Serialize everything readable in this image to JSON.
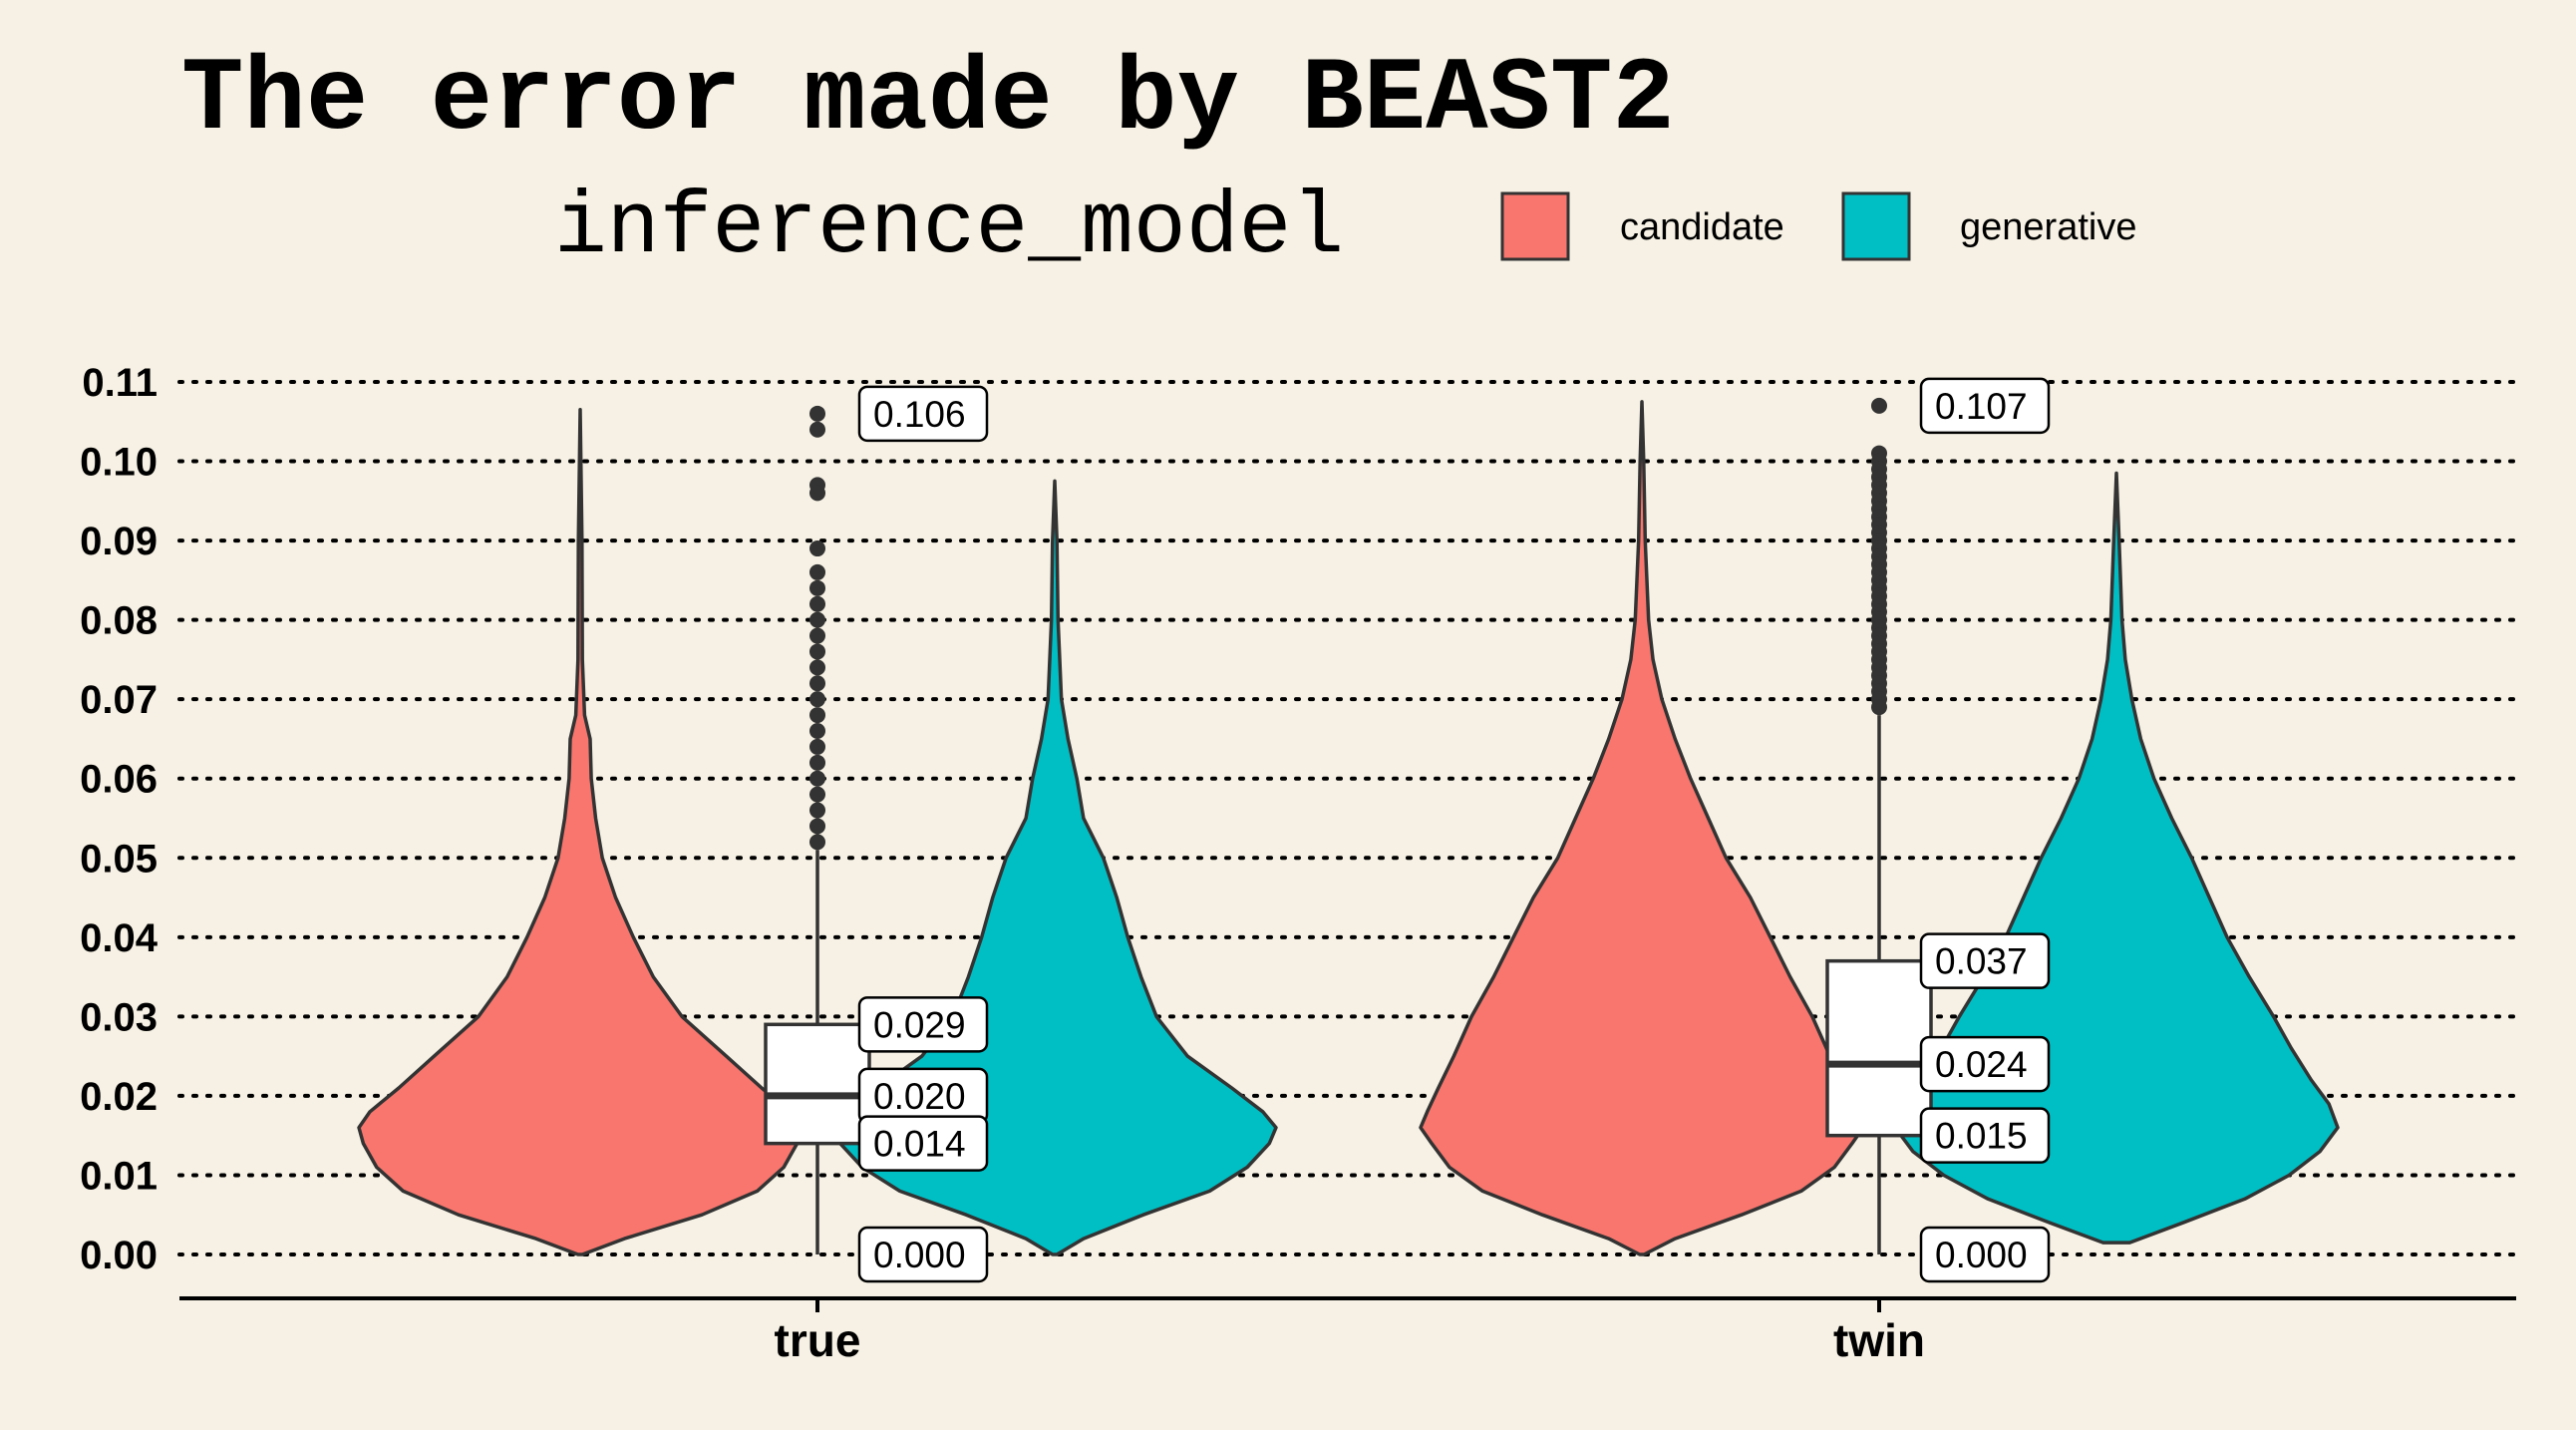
{
  "chart_data": {
    "type": "violin",
    "title": "The error made by BEAST2",
    "legend": {
      "title": "inference_model",
      "entries": [
        {
          "label": "candidate",
          "color": "#f8766d"
        },
        {
          "label": "generative",
          "color": "#00bfc4"
        }
      ]
    },
    "categories": [
      "true",
      "twin"
    ],
    "ylim": [
      0,
      0.11
    ],
    "yticks": [
      "0.00",
      "0.01",
      "0.02",
      "0.03",
      "0.04",
      "0.05",
      "0.06",
      "0.07",
      "0.08",
      "0.09",
      "0.10",
      "0.11"
    ],
    "grid": "horizontal-dotted",
    "groups": [
      {
        "category": "true",
        "box": {
          "min": 0.0,
          "q1": 0.014,
          "median": 0.02,
          "q3": 0.029,
          "whisker_high": 0.051,
          "max": 0.106
        },
        "labels": [
          "0.106",
          "0.029",
          "0.020",
          "0.014",
          "0.000"
        ],
        "outliers": [
          0.106,
          0.104,
          0.097,
          0.096,
          0.089,
          0.086,
          0.084,
          0.082,
          0.08,
          0.078,
          0.076,
          0.074,
          0.072,
          0.07,
          0.068,
          0.066,
          0.064,
          0.062,
          0.06,
          0.058,
          0.056,
          0.054,
          0.052
        ],
        "violins": [
          {
            "model": "candidate",
            "min": 0.0,
            "max": 0.1065,
            "profile": [
              [
                0.0,
                0.01
              ],
              [
                0.002,
                0.2
              ],
              [
                0.005,
                0.55
              ],
              [
                0.008,
                0.8
              ],
              [
                0.011,
                0.92
              ],
              [
                0.014,
                0.98
              ],
              [
                0.016,
                1.0
              ],
              [
                0.018,
                0.95
              ],
              [
                0.021,
                0.82
              ],
              [
                0.025,
                0.66
              ],
              [
                0.03,
                0.46
              ],
              [
                0.035,
                0.33
              ],
              [
                0.04,
                0.24
              ],
              [
                0.045,
                0.16
              ],
              [
                0.05,
                0.1
              ],
              [
                0.055,
                0.07
              ],
              [
                0.06,
                0.05
              ],
              [
                0.065,
                0.045
              ],
              [
                0.068,
                0.02
              ],
              [
                0.075,
                0.01
              ],
              [
                0.09,
                0.008
              ],
              [
                0.1065,
                0.0
              ]
            ]
          },
          {
            "model": "generative",
            "min": 0.0,
            "max": 0.0975,
            "profile": [
              [
                0.0,
                0.01
              ],
              [
                0.002,
                0.13
              ],
              [
                0.005,
                0.4
              ],
              [
                0.008,
                0.7
              ],
              [
                0.011,
                0.87
              ],
              [
                0.014,
                0.97
              ],
              [
                0.016,
                1.0
              ],
              [
                0.018,
                0.94
              ],
              [
                0.021,
                0.8
              ],
              [
                0.025,
                0.6
              ],
              [
                0.03,
                0.46
              ],
              [
                0.035,
                0.39
              ],
              [
                0.04,
                0.33
              ],
              [
                0.045,
                0.28
              ],
              [
                0.05,
                0.22
              ],
              [
                0.055,
                0.13
              ],
              [
                0.06,
                0.1
              ],
              [
                0.065,
                0.06
              ],
              [
                0.07,
                0.03
              ],
              [
                0.08,
                0.015
              ],
              [
                0.09,
                0.01
              ],
              [
                0.0975,
                0.0
              ]
            ]
          }
        ]
      },
      {
        "category": "twin",
        "box": {
          "min": 0.0,
          "q1": 0.015,
          "median": 0.024,
          "q3": 0.037,
          "whisker_high": 0.068,
          "max": 0.107
        },
        "labels": [
          "0.107",
          "0.037",
          "0.024",
          "0.015",
          "0.000"
        ],
        "outliers": [
          0.107,
          0.101,
          0.1,
          0.099,
          0.098,
          0.097,
          0.096,
          0.095,
          0.094,
          0.093,
          0.092,
          0.091,
          0.09,
          0.089,
          0.088,
          0.087,
          0.086,
          0.085,
          0.084,
          0.083,
          0.082,
          0.081,
          0.08,
          0.079,
          0.078,
          0.077,
          0.076,
          0.075,
          0.074,
          0.073,
          0.072,
          0.071,
          0.07,
          0.069
        ],
        "violins": [
          {
            "model": "candidate",
            "min": 0.0,
            "max": 0.1075,
            "profile": [
              [
                0.0,
                0.01
              ],
              [
                0.002,
                0.15
              ],
              [
                0.005,
                0.45
              ],
              [
                0.008,
                0.72
              ],
              [
                0.011,
                0.87
              ],
              [
                0.014,
                0.95
              ],
              [
                0.016,
                1.0
              ],
              [
                0.018,
                0.97
              ],
              [
                0.021,
                0.92
              ],
              [
                0.025,
                0.85
              ],
              [
                0.03,
                0.77
              ],
              [
                0.035,
                0.67
              ],
              [
                0.04,
                0.58
              ],
              [
                0.045,
                0.49
              ],
              [
                0.05,
                0.38
              ],
              [
                0.055,
                0.3
              ],
              [
                0.06,
                0.22
              ],
              [
                0.065,
                0.15
              ],
              [
                0.07,
                0.09
              ],
              [
                0.075,
                0.05
              ],
              [
                0.08,
                0.03
              ],
              [
                0.09,
                0.015
              ],
              [
                0.1,
                0.008
              ],
              [
                0.1075,
                0.0
              ]
            ]
          },
          {
            "model": "generative",
            "min": 0.0015,
            "max": 0.0985,
            "profile": [
              [
                0.0015,
                0.06
              ],
              [
                0.004,
                0.3
              ],
              [
                0.007,
                0.58
              ],
              [
                0.01,
                0.78
              ],
              [
                0.013,
                0.92
              ],
              [
                0.016,
                1.0
              ],
              [
                0.019,
                0.96
              ],
              [
                0.022,
                0.88
              ],
              [
                0.026,
                0.79
              ],
              [
                0.03,
                0.71
              ],
              [
                0.035,
                0.6
              ],
              [
                0.04,
                0.5
              ],
              [
                0.045,
                0.42
              ],
              [
                0.05,
                0.34
              ],
              [
                0.055,
                0.25
              ],
              [
                0.06,
                0.17
              ],
              [
                0.065,
                0.11
              ],
              [
                0.07,
                0.07
              ],
              [
                0.075,
                0.04
              ],
              [
                0.08,
                0.025
              ],
              [
                0.09,
                0.012
              ],
              [
                0.0985,
                0.0
              ]
            ]
          }
        ]
      }
    ]
  }
}
